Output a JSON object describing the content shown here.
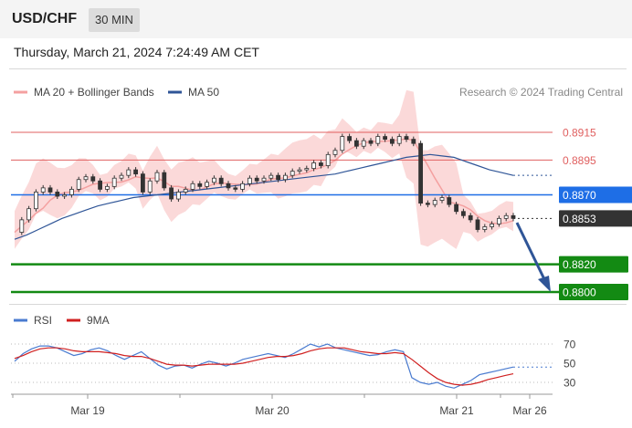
{
  "header": {
    "pair": "USD/CHF",
    "interval": "30 MIN",
    "datetime": "Thursday, March 21, 2024 7:24:49 AM CET"
  },
  "legend": {
    "ma20_label": "MA 20 + Bollinger Bands",
    "ma50_label": "MA 50",
    "credit": "Research © 2024 Trading Central",
    "rsi_label": "RSI",
    "ma9_label": "9MA"
  },
  "colors": {
    "bollinger": "#f4a0a0",
    "ma50": "#2f5597",
    "resistance": "#e06060",
    "pivot": "#1e6ee6",
    "current": "#333333",
    "support": "#138a13",
    "rsi": "#4a7bd0",
    "ma9": "#d02020",
    "arrow": "#2f5597"
  },
  "chart_data": [
    {
      "type": "candlestick",
      "levels": [
        {
          "name": "resistance",
          "value": 0.8915,
          "label": "0.8915"
        },
        {
          "name": "resistance",
          "value": 0.8895,
          "label": "0.8895"
        },
        {
          "name": "pivot",
          "value": 0.887,
          "label": "0.8870"
        },
        {
          "name": "current",
          "value": 0.8853,
          "label": "0.8853"
        },
        {
          "name": "support",
          "value": 0.882,
          "label": "0.8820"
        },
        {
          "name": "support",
          "value": 0.88,
          "label": "0.8800"
        }
      ],
      "price_path": [
        0.8843,
        0.8852,
        0.886,
        0.8872,
        0.8875,
        0.8872,
        0.8869,
        0.887,
        0.8874,
        0.8881,
        0.8883,
        0.888,
        0.8874,
        0.8876,
        0.8882,
        0.8884,
        0.8888,
        0.8885,
        0.8872,
        0.888,
        0.8886,
        0.8875,
        0.8867,
        0.8872,
        0.8874,
        0.8878,
        0.8876,
        0.8879,
        0.8882,
        0.8878,
        0.8875,
        0.8874,
        0.8878,
        0.8882,
        0.888,
        0.8882,
        0.8884,
        0.8881,
        0.8884,
        0.8887,
        0.8888,
        0.8889,
        0.8893,
        0.8891,
        0.8899,
        0.8902,
        0.8912,
        0.8909,
        0.8905,
        0.8909,
        0.8907,
        0.8912,
        0.891,
        0.8907,
        0.8912,
        0.891,
        0.8907,
        0.8864,
        0.8863,
        0.8866,
        0.8868,
        0.8863,
        0.8858,
        0.8855,
        0.8852,
        0.8845,
        0.8847,
        0.8849,
        0.8853,
        0.8855,
        0.8853
      ],
      "ma50": [
        0.8838,
        0.8841,
        0.8845,
        0.8849,
        0.8853,
        0.8856,
        0.8859,
        0.8862,
        0.8864,
        0.8866,
        0.8868,
        0.8869,
        0.887,
        0.8871,
        0.8872,
        0.8873,
        0.8874,
        0.8875,
        0.8876,
        0.8877,
        0.8878,
        0.8879,
        0.888,
        0.8881,
        0.8882,
        0.8883,
        0.8884,
        0.8885,
        0.8887,
        0.8889,
        0.8891,
        0.8893,
        0.8895,
        0.8897,
        0.8898,
        0.8899,
        0.8898,
        0.8897,
        0.8894,
        0.8891,
        0.8888,
        0.8886,
        0.8884
      ],
      "x_labels": [
        "Mar 19",
        "Mar 20",
        "Mar 21",
        "Mar 26"
      ]
    },
    {
      "type": "line",
      "series": [
        {
          "name": "RSI",
          "values": [
            52,
            60,
            65,
            68,
            68,
            66,
            62,
            58,
            60,
            64,
            66,
            63,
            58,
            54,
            58,
            62,
            55,
            48,
            44,
            47,
            48,
            45,
            49,
            52,
            50,
            47,
            50,
            54,
            56,
            58,
            60,
            58,
            56,
            60,
            65,
            70,
            67,
            70,
            66,
            64,
            62,
            60,
            58,
            59,
            62,
            64,
            62,
            35,
            30,
            28,
            30,
            26,
            24,
            28,
            32,
            38,
            40,
            42,
            44,
            46
          ]
        },
        {
          "name": "9MA",
          "values": [
            55,
            58,
            62,
            65,
            66,
            66,
            65,
            63,
            62,
            62,
            62,
            61,
            60,
            58,
            57,
            57,
            55,
            52,
            49,
            48,
            48,
            47,
            48,
            49,
            49,
            49,
            49,
            50,
            52,
            54,
            56,
            57,
            57,
            58,
            60,
            63,
            65,
            66,
            66,
            66,
            64,
            62,
            61,
            60,
            60,
            61,
            60,
            54,
            47,
            40,
            34,
            30,
            28,
            27,
            28,
            30,
            33,
            35,
            37,
            39
          ]
        }
      ],
      "levels": [
        70,
        50,
        30
      ],
      "level_labels": [
        "70",
        "50",
        "30"
      ]
    }
  ]
}
